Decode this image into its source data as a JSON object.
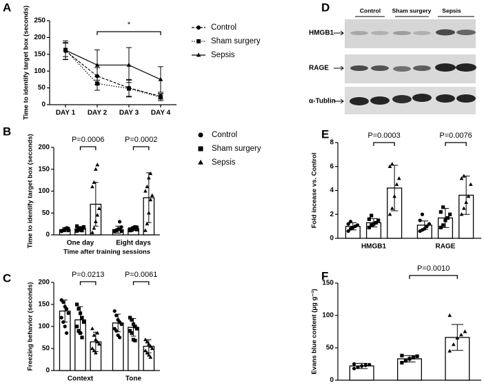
{
  "chart_data": [
    {
      "type": "line",
      "panel": "A",
      "ylabel": "Time to identify target box (seconds)",
      "categories": [
        "DAY 1",
        "DAY 2",
        "DAY 3",
        "DAY 4"
      ],
      "ylim": [
        0,
        250
      ],
      "yticks": [
        0,
        50,
        100,
        150,
        200,
        250
      ],
      "legend": "right",
      "series": [
        {
          "name": "Control",
          "marker": "circle",
          "line": "dashed",
          "color": "#000000",
          "values": [
            160,
            85,
            50,
            25
          ],
          "errors": [
            25,
            25,
            25,
            8
          ]
        },
        {
          "name": "Sham surgery",
          "marker": "square",
          "line": "dotted",
          "color": "#000000",
          "values": [
            163,
            63,
            48,
            22
          ],
          "errors": [
            20,
            20,
            25,
            10
          ]
        },
        {
          "name": "Sepsis",
          "marker": "triangle",
          "line": "solid",
          "color": "#000000",
          "values": [
            162,
            118,
            118,
            75
          ],
          "errors": [
            28,
            45,
            52,
            38
          ]
        }
      ],
      "annotations": [
        "*"
      ]
    },
    {
      "type": "bar",
      "panel": "B",
      "ylabel": "Time to identify target box (seconds)",
      "xlabel": "Time after training sessions",
      "categories": [
        "One day",
        "Eight days"
      ],
      "ylim": [
        0,
        200
      ],
      "yticks": [
        0,
        50,
        100,
        150,
        200
      ],
      "legend": "right",
      "bar_color": "#ffffff",
      "series": [
        {
          "name": "Control",
          "marker": "circle",
          "color": "#000000",
          "values": [
            12,
            12
          ],
          "errors": [
            5,
            8
          ],
          "points": [
            [
              8,
              10,
              12,
              14,
              15,
              9,
              11,
              13,
              16,
              10
            ],
            [
              7,
              10,
              12,
              14,
              18,
              9,
              11,
              13,
              30,
              8
            ]
          ]
        },
        {
          "name": "Sham surgery",
          "marker": "square",
          "color": "#000000",
          "values": [
            14,
            14
          ],
          "errors": [
            5,
            4
          ],
          "points": [
            [
              9,
              11,
              13,
              15,
              18,
              20,
              12,
              14,
              10,
              16
            ],
            [
              10,
              12,
              14,
              15,
              17,
              13,
              11,
              16,
              18,
              12
            ]
          ]
        },
        {
          "name": "Sepsis",
          "marker": "triangle",
          "color": "#000000",
          "values": [
            70,
            85
          ],
          "errors": [
            50,
            57
          ],
          "points": [
            [
              5,
              15,
              30,
              45,
              60,
              110,
              120,
              150,
              160
            ],
            [
              10,
              25,
              50,
              80,
              90,
              100,
              110,
              130,
              140
            ]
          ]
        }
      ],
      "annotations": [
        "P=0.0006",
        "P=0.0002"
      ]
    },
    {
      "type": "bar",
      "panel": "C",
      "ylabel": "Freezing behavior (seconds)",
      "categories": [
        "Context",
        "Tone"
      ],
      "ylim": [
        0,
        200
      ],
      "yticks": [
        0,
        50,
        100,
        150,
        200
      ],
      "bar_color": "#ffffff",
      "series": [
        {
          "name": "Control",
          "marker": "circle",
          "color": "#000000",
          "values": [
            135,
            108
          ],
          "errors": [
            25,
            20
          ],
          "points": [
            [
              160,
              155,
              145,
              140,
              130,
              120,
              110,
              100,
              85
            ],
            [
              135,
              125,
              115,
              110,
              105,
              95,
              90,
              80,
              75
            ]
          ]
        },
        {
          "name": "Sham surgery",
          "marker": "square",
          "color": "#000000",
          "values": [
            115,
            98
          ],
          "errors": [
            30,
            20
          ],
          "points": [
            [
              150,
              140,
              130,
              120,
              110,
              100,
              90,
              85,
              75
            ],
            [
              120,
              115,
              105,
              100,
              95,
              90,
              85,
              70,
              68
            ]
          ]
        },
        {
          "name": "Sepsis",
          "marker": "triangle",
          "color": "#000000",
          "values": [
            65,
            55
          ],
          "errors": [
            22,
            15
          ],
          "points": [
            [
              95,
              80,
              70,
              65,
              60,
              50,
              45,
              40,
              85
            ],
            [
              70,
              65,
              60,
              55,
              50,
              45,
              40,
              35,
              30
            ]
          ]
        }
      ],
      "annotations": [
        "P=0.0213",
        "P=0.0061"
      ]
    },
    {
      "type": "bar",
      "panel": "E",
      "ylabel": "Fold incease vs. Control",
      "categories": [
        "HMGB1",
        "RAGE"
      ],
      "ylim": [
        0,
        8
      ],
      "yticks": [
        0,
        2,
        4,
        6,
        8
      ],
      "bar_color": "#ffffff",
      "series": [
        {
          "name": "Control",
          "marker": "circle",
          "color": "#000000",
          "values": [
            1.0,
            1.1
          ],
          "errors": [
            0.3,
            0.35
          ],
          "points": [
            [
              0.6,
              0.8,
              0.9,
              1.0,
              1.1,
              1.2,
              1.4
            ],
            [
              0.6,
              0.7,
              0.8,
              1.0,
              1.2,
              1.5,
              2.0
            ]
          ]
        },
        {
          "name": "Sham surgery",
          "marker": "square",
          "color": "#000000",
          "values": [
            1.3,
            1.7
          ],
          "errors": [
            0.35,
            0.8
          ],
          "points": [
            [
              0.9,
              1.1,
              1.2,
              1.3,
              1.5,
              1.6,
              1.9
            ],
            [
              0.9,
              1.1,
              1.5,
              1.7,
              2.0,
              2.2,
              2.6
            ]
          ]
        },
        {
          "name": "Sepsis",
          "marker": "triangle",
          "color": "#000000",
          "values": [
            4.2,
            3.6
          ],
          "errors": [
            1.9,
            1.6
          ],
          "points": [
            [
              2.0,
              2.5,
              3.5,
              4.5,
              5.0,
              6.0,
              6.2
            ],
            [
              2.0,
              2.5,
              3.0,
              3.5,
              4.5,
              5.0,
              5.2
            ]
          ]
        }
      ],
      "annotations": [
        "P=0.0003",
        "P=0.0076"
      ]
    },
    {
      "type": "bar",
      "panel": "F",
      "ylabel": "Evans blue content (μg g⁻¹)",
      "categories": [
        null,
        null,
        null
      ],
      "ylim": [
        0,
        150
      ],
      "yticks": [
        0,
        50,
        100,
        150
      ],
      "bar_color": "#ffffff",
      "color": "#000000",
      "values": [
        22,
        33,
        66
      ],
      "errors": [
        4,
        5,
        20
      ],
      "markers": [
        "circle",
        "square",
        "triangle"
      ],
      "points": [
        [
          18,
          20,
          22,
          23,
          24,
          25
        ],
        [
          27,
          30,
          33,
          35,
          37,
          38
        ],
        [
          45,
          55,
          65,
          70,
          75,
          100
        ]
      ],
      "annotations": [
        "P=0.0010"
      ]
    }
  ],
  "blot": {
    "panel": "D",
    "columns": [
      "Control",
      "Sham surgery",
      "Sepsis"
    ],
    "rows": [
      "HMGB1",
      "RAGE",
      "α-Tublin"
    ]
  }
}
